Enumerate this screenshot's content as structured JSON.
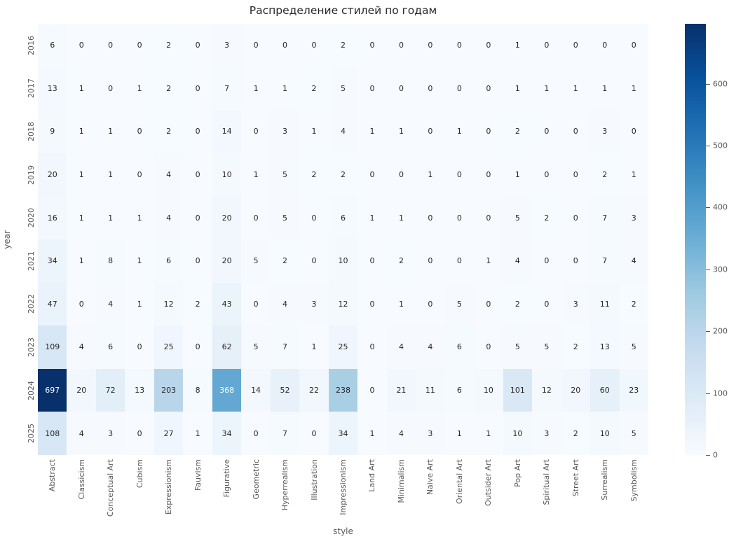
{
  "title": "Распределение стилей по годам",
  "chart_data": {
    "type": "heatmap",
    "title": "Распределение стилей по годам",
    "xlabel": "style",
    "ylabel": "year",
    "rows": [
      "2016",
      "2017",
      "2018",
      "2019",
      "2020",
      "2021",
      "2022",
      "2023",
      "2024",
      "2025"
    ],
    "columns": [
      "Abstract",
      "Classicism",
      "Conceptual Art",
      "Cubism",
      "Expressionism",
      "Fauvism",
      "Figurative",
      "Geometric",
      "Hyperrealism",
      "Illustration",
      "Impressionism",
      "Land Art",
      "Minimalism",
      "Naive Art",
      "Oriental Art",
      "Outsider Art",
      "Pop Art",
      "Spiritual Art",
      "Street Art",
      "Surrealism",
      "Symbolism"
    ],
    "matrix": [
      [
        6,
        0,
        0,
        0,
        2,
        0,
        3,
        0,
        0,
        0,
        2,
        0,
        0,
        0,
        0,
        0,
        1,
        0,
        0,
        0,
        0
      ],
      [
        13,
        1,
        0,
        1,
        2,
        0,
        7,
        1,
        1,
        2,
        5,
        0,
        0,
        0,
        0,
        0,
        1,
        1,
        1,
        1,
        1
      ],
      [
        9,
        1,
        1,
        0,
        2,
        0,
        14,
        0,
        3,
        1,
        4,
        1,
        1,
        0,
        1,
        0,
        2,
        0,
        0,
        3,
        0
      ],
      [
        20,
        1,
        1,
        0,
        4,
        0,
        10,
        1,
        5,
        2,
        2,
        0,
        0,
        1,
        0,
        0,
        1,
        0,
        0,
        2,
        1
      ],
      [
        16,
        1,
        1,
        1,
        4,
        0,
        20,
        0,
        5,
        0,
        6,
        1,
        1,
        0,
        0,
        0,
        5,
        2,
        0,
        7,
        3
      ],
      [
        34,
        1,
        8,
        1,
        6,
        0,
        20,
        5,
        2,
        0,
        10,
        0,
        2,
        0,
        0,
        1,
        4,
        0,
        0,
        7,
        4
      ],
      [
        47,
        0,
        4,
        1,
        12,
        2,
        43,
        0,
        4,
        3,
        12,
        0,
        1,
        0,
        5,
        0,
        2,
        0,
        3,
        11,
        2
      ],
      [
        109,
        4,
        6,
        0,
        25,
        0,
        62,
        5,
        7,
        1,
        25,
        0,
        4,
        4,
        6,
        0,
        5,
        5,
        2,
        13,
        5
      ],
      [
        697,
        20,
        72,
        13,
        203,
        8,
        368,
        14,
        52,
        22,
        238,
        0,
        21,
        11,
        6,
        10,
        101,
        12,
        20,
        60,
        23
      ],
      [
        108,
        4,
        3,
        0,
        27,
        1,
        34,
        0,
        7,
        0,
        34,
        1,
        4,
        3,
        1,
        1,
        10,
        3,
        2,
        10,
        5
      ]
    ],
    "vmin": 0,
    "vmax": 697,
    "colormap": "Blues",
    "colormap_stops": [
      "#f7fbff",
      "#deebf7",
      "#c6dbef",
      "#9ecae1",
      "#6baed6",
      "#4292c6",
      "#2171b5",
      "#08519c",
      "#08306b"
    ],
    "colorbar_ticks": [
      0,
      100,
      200,
      300,
      400,
      500,
      600
    ],
    "legend_position": "right",
    "grid": false,
    "annotation_text_dark": "#262626",
    "annotation_text_light": "#ffffff"
  }
}
